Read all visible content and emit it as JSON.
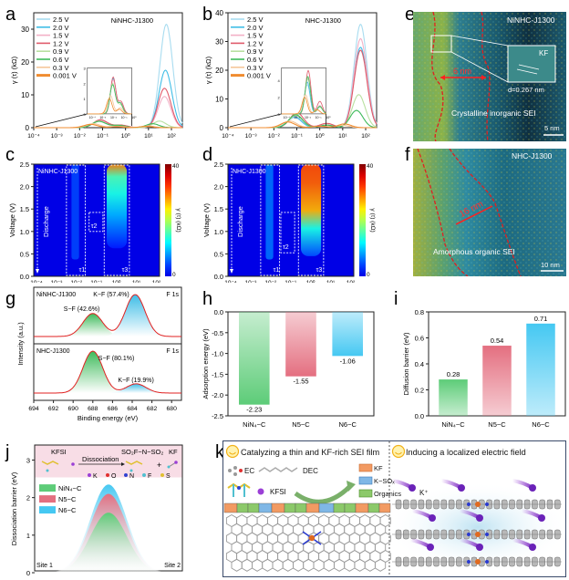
{
  "panel_labels": {
    "a": "a",
    "b": "b",
    "c": "c",
    "d": "d",
    "e": "e",
    "f": "f",
    "g": "g",
    "h": "h",
    "i": "i",
    "j": "j",
    "k": "k"
  },
  "chart_data": [
    {
      "id": "a",
      "type": "line",
      "title": "NiNHC-J1300",
      "xlabel": "τ (s)",
      "ylabel": "γ (τ) (kΩ)",
      "xscale": "log",
      "xlim": [
        0.0001,
        300
      ],
      "ylim": [
        0,
        35
      ],
      "xticks": [
        "10⁻⁴",
        "10⁻³",
        "10⁻²",
        "10⁻¹",
        "10⁰",
        "10¹",
        "10²"
      ],
      "yticks": [
        0,
        10,
        20,
        30
      ],
      "legend_position": "top-left",
      "series": [
        {
          "name": "2.5 V",
          "color": "#a8dcf0",
          "peaks": [
            [
              0.08,
              2.4
            ],
            [
              0.6,
              0.7
            ],
            [
              60,
              31.5
            ]
          ]
        },
        {
          "name": "2.0 V",
          "color": "#3fbde6",
          "peaks": [
            [
              0.08,
              2.3
            ],
            [
              0.6,
              0.7
            ],
            [
              55,
              17.5
            ]
          ]
        },
        {
          "name": "1.5 V",
          "color": "#f3b0c6",
          "peaks": [
            [
              0.08,
              2.2
            ],
            [
              0.6,
              0.7
            ],
            [
              50,
              9.5
            ]
          ]
        },
        {
          "name": "1.2 V",
          "color": "#e05a6a",
          "peaks": [
            [
              0.08,
              2.4
            ],
            [
              0.6,
              0.8
            ],
            [
              50,
              12.0
            ]
          ]
        },
        {
          "name": "0.9 V",
          "color": "#b8e0a0",
          "peaks": [
            [
              0.07,
              2.0
            ],
            [
              0.5,
              0.6
            ],
            [
              30,
              2.0
            ]
          ]
        },
        {
          "name": "0.6 V",
          "color": "#3dba5a",
          "peaks": [
            [
              0.07,
              1.9
            ],
            [
              0.5,
              0.7
            ],
            [
              15,
              1.2
            ]
          ]
        },
        {
          "name": "0.3 V",
          "color": "#f5c79a",
          "peaks": [
            [
              0.04,
              1.2
            ],
            [
              0.5,
              0.4
            ],
            [
              10,
              0.5
            ]
          ]
        },
        {
          "name": "0.001 V",
          "color": "#f08c30",
          "peaks": [
            [
              0.03,
              1.0
            ],
            [
              0.4,
              0.3
            ],
            [
              8,
              0.4
            ]
          ]
        }
      ],
      "inset": {
        "yticks": [
          0,
          1,
          2,
          3
        ],
        "xticks": [
          "10⁻⁴",
          "10⁻³",
          "10⁻²",
          "10⁻¹",
          "10⁰"
        ]
      }
    },
    {
      "id": "b",
      "type": "line",
      "title": "NHC-J1300",
      "xlabel": "τ (s)",
      "ylabel": "γ (τ) (kΩ)",
      "xscale": "log",
      "xlim": [
        0.0001,
        300
      ],
      "ylim": [
        0,
        40
      ],
      "xticks": [
        "10⁻⁴",
        "10⁻³",
        "10⁻²",
        "10⁻¹",
        "10⁰",
        "10¹",
        "10²"
      ],
      "yticks": [
        0,
        10,
        20,
        30,
        40
      ],
      "legend_position": "top-left",
      "series": [
        {
          "name": "2.5 V",
          "color": "#a8dcf0",
          "peaks": [
            [
              0.08,
              3.5
            ],
            [
              2,
              0.8
            ],
            [
              60,
              36
            ]
          ]
        },
        {
          "name": "2.0 V",
          "color": "#3fbde6",
          "peaks": [
            [
              0.08,
              3.8
            ],
            [
              2,
              0.9
            ],
            [
              60,
              28
            ]
          ]
        },
        {
          "name": "1.5 V",
          "color": "#f3b0c6",
          "peaks": [
            [
              0.09,
              4.2
            ],
            [
              2,
              1.0
            ],
            [
              60,
              31
            ]
          ]
        },
        {
          "name": "1.2 V",
          "color": "#e05a6a",
          "peaks": [
            [
              0.1,
              5.2
            ],
            [
              2,
              1.5
            ],
            [
              60,
              27
            ]
          ]
        },
        {
          "name": "0.9 V",
          "color": "#b8e0a0",
          "peaks": [
            [
              0.09,
              4.3
            ],
            [
              2,
              0.8
            ],
            [
              50,
              11.5
            ]
          ]
        },
        {
          "name": "0.6 V",
          "color": "#3dba5a",
          "peaks": [
            [
              0.09,
              4.5
            ],
            [
              2,
              0.9
            ],
            [
              40,
              6.0
            ]
          ]
        },
        {
          "name": "0.3 V",
          "color": "#f5c79a",
          "peaks": [
            [
              0.05,
              2.3
            ],
            [
              1,
              0.5
            ],
            [
              10,
              0.8
            ]
          ]
        },
        {
          "name": "0.001 V",
          "color": "#f08c30",
          "peaks": [
            [
              0.04,
              2.0
            ],
            [
              1,
              0.5
            ],
            [
              12,
              1.3
            ]
          ]
        }
      ],
      "inset": {
        "yticks": [
          0,
          2,
          4
        ],
        "xticks": [
          "10⁻⁴",
          "10⁻³",
          "10⁻²",
          "10⁻¹",
          "10⁰"
        ]
      }
    },
    {
      "id": "c",
      "type": "heatmap",
      "title": "NiNHC-J1300",
      "xlabel": "τ (s)",
      "ylabel": "Voltage (V)",
      "xticks": [
        "10⁻⁴",
        "10⁻³",
        "10⁻²",
        "10⁻¹",
        "10⁰",
        "10¹",
        "10²"
      ],
      "yticks": [
        "0.0",
        "0.5",
        "1.0",
        "1.5",
        "2.0",
        "2.5"
      ],
      "colorbar": {
        "label": "γ (τ) (kΩ)",
        "min": 0,
        "max": 40
      },
      "annotations": [
        "Discharge",
        "τ1",
        "τ2",
        "τ3"
      ]
    },
    {
      "id": "d",
      "type": "heatmap",
      "title": "NHC-J1300",
      "xlabel": "τ (s)",
      "ylabel": "Voltage (V)",
      "xticks": [
        "10⁻⁴",
        "10⁻³",
        "10⁻²",
        "10⁻¹",
        "10⁰",
        "10¹",
        "10²"
      ],
      "yticks": [
        "0.0",
        "0.5",
        "1.0",
        "1.5",
        "2.0",
        "2.5"
      ],
      "colorbar": {
        "label": "γ (τ) (kΩ)",
        "min": 0,
        "max": 40
      },
      "annotations": [
        "Discharge",
        "τ1",
        "τ2",
        "τ3"
      ]
    },
    {
      "id": "g",
      "type": "line",
      "title": "F 1s",
      "xlabel": "Binding energy (eV)",
      "ylabel": "Intensity (a.u.)",
      "xlim": [
        694,
        679
      ],
      "xticks": [
        694,
        692,
        690,
        688,
        686,
        684,
        682,
        680
      ],
      "panels": [
        {
          "sample": "NiNHC-J1300",
          "spectrum": "F 1s",
          "peaks": [
            {
              "name": "S−F (42.6%)",
              "center": 688.0,
              "height": 0.55,
              "color": "#3dba5a"
            },
            {
              "name": "K−F (57.4%)",
              "center": 683.7,
              "height": 1.0,
              "color": "#3fbde6"
            }
          ]
        },
        {
          "sample": "NHC-J1300",
          "spectrum": "F 1s",
          "peaks": [
            {
              "name": "S−F (80.1%)",
              "center": 688.0,
              "height": 1.0,
              "color": "#3dba5a"
            },
            {
              "name": "K−F (19.9%)",
              "center": 683.6,
              "height": 0.22,
              "color": "#3fbde6"
            }
          ]
        }
      ]
    },
    {
      "id": "h",
      "type": "bar",
      "categories": [
        "NiN₄−C",
        "N5−C",
        "N6−C"
      ],
      "values": [
        -2.23,
        -1.55,
        -1.06
      ],
      "labels": [
        "-2.23",
        "-1.55",
        "-1.06"
      ],
      "colors": [
        "#5dcc78",
        "#e46f80",
        "#45c8f2"
      ],
      "ylabel": "Adsorption energy (eV)",
      "ylim": [
        -2.5,
        0
      ],
      "yticks": [
        "0.0",
        "-0.5",
        "-1.0",
        "-1.5",
        "-2.0",
        "-2.5"
      ]
    },
    {
      "id": "i",
      "type": "bar",
      "categories": [
        "NiN₄−C",
        "N5−C",
        "N6−C"
      ],
      "values": [
        0.28,
        0.54,
        0.71
      ],
      "labels": [
        "0.28",
        "0.54",
        "0.71"
      ],
      "colors": [
        "#5dcc78",
        "#e46f80",
        "#45c8f2"
      ],
      "ylabel": "Diffusion barrier (eV)",
      "ylim": [
        0,
        0.8
      ],
      "yticks": [
        "0.0",
        "0.2",
        "0.4",
        "0.6",
        "0.8"
      ]
    },
    {
      "id": "j",
      "type": "area",
      "ylabel": "Dissociation barrier (eV)",
      "ylim": [
        0,
        3.4
      ],
      "yticks": [
        0,
        1,
        2,
        3
      ],
      "series": [
        {
          "name": "NiN₄−C",
          "peak": 1.6,
          "color": "#5dcc78"
        },
        {
          "name": "N5−C",
          "peak": 2.1,
          "color": "#e46f80"
        },
        {
          "name": "N6−C",
          "peak": 2.35,
          "color": "#45c8f2"
        }
      ],
      "endpoints": [
        "Site 1",
        "Site 2"
      ],
      "scheme": {
        "reactant": "KFSI",
        "arrow": "Dissociation",
        "product1": "SO₂F−N−SO₂",
        "plus": "+",
        "product2": "KF"
      },
      "atom_legend": [
        {
          "label": "K",
          "color": "#9b3fd6"
        },
        {
          "label": "O",
          "color": "#e03030"
        },
        {
          "label": "N",
          "color": "#3040d0"
        },
        {
          "label": "F",
          "color": "#50c0d0"
        },
        {
          "label": "S",
          "color": "#e0c030"
        }
      ]
    }
  ],
  "tem": {
    "e": {
      "sample": "NiNHC-J1300",
      "thickness": "6 nm",
      "phase": "KF",
      "d_spacing": "d=0.267 nm",
      "caption": "Crystalline inorganic SEI",
      "scale": "5 nm"
    },
    "f": {
      "sample": "NHC-J1300",
      "thickness": "16 nm",
      "caption": "Amorphous organic SEI",
      "scale": "10 nm"
    }
  },
  "schematic_k": {
    "left_title": "Catalyzing a thin and KF-rich SEI film",
    "right_title": "Inducing a localized electric field",
    "molecules": [
      "EC",
      "DEC",
      "KFSI"
    ],
    "legend": [
      {
        "label": "KF",
        "color": "#f29a62"
      },
      {
        "label": "K−SOₓ",
        "color": "#7fb7e6"
      },
      {
        "label": "Organics",
        "color": "#8cc96a"
      }
    ],
    "ion_label": "K⁺"
  }
}
